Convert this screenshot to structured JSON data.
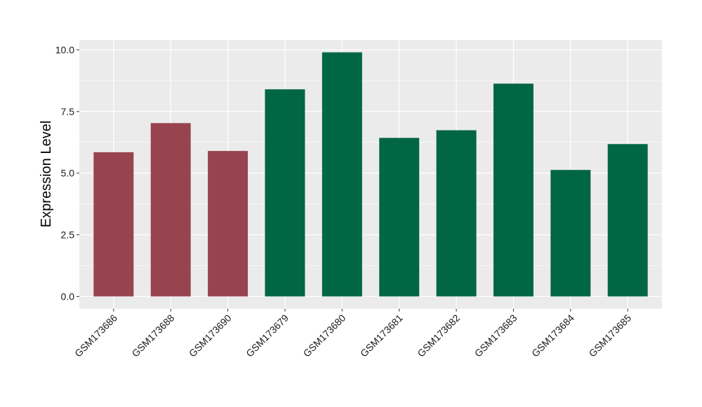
{
  "chart_data": {
    "type": "bar",
    "title": "",
    "xlabel": "",
    "ylabel": "Expression Level",
    "ylim": [
      -0.5,
      10.4
    ],
    "yticks": [
      0.0,
      2.5,
      5.0,
      7.5,
      10.0
    ],
    "ytick_labels": [
      "0.0",
      "2.5",
      "5.0",
      "7.5",
      "10.0"
    ],
    "categories": [
      "GSM173686",
      "GSM173688",
      "GSM173690",
      "GSM173679",
      "GSM173680",
      "GSM173681",
      "GSM173682",
      "GSM173683",
      "GSM173684",
      "GSM173685"
    ],
    "values": [
      5.85,
      7.03,
      5.9,
      8.4,
      9.9,
      6.43,
      6.74,
      8.63,
      5.13,
      6.18
    ],
    "bar_colors": [
      "#984450",
      "#984450",
      "#984450",
      "#006644",
      "#006644",
      "#006644",
      "#006644",
      "#006644",
      "#006644",
      "#006644"
    ],
    "panel_background": "#ebebeb",
    "gridline_color": "#ffffff",
    "grid": true,
    "legend": "none"
  }
}
